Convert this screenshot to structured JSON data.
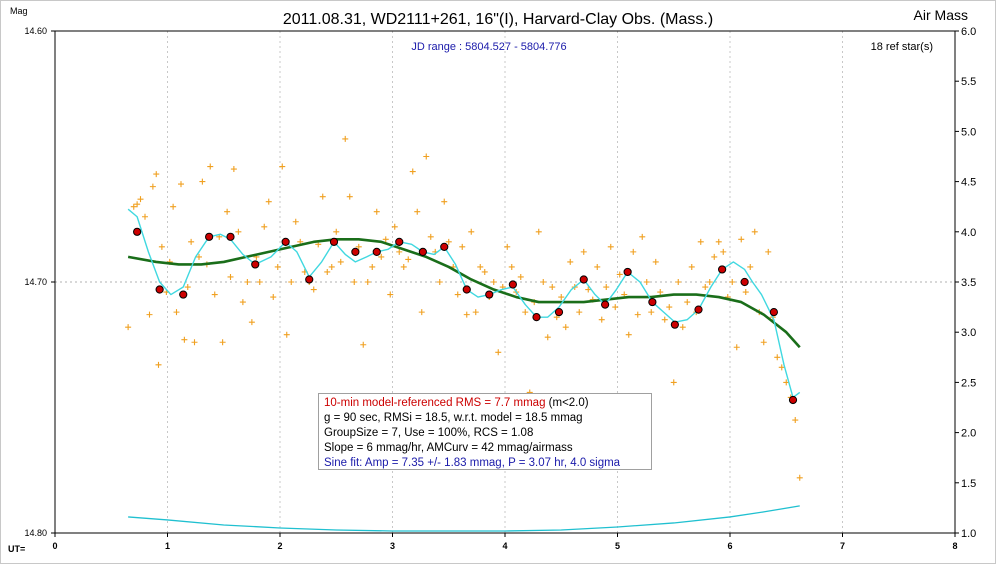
{
  "chart_data": {
    "type": "scatter",
    "title": "2011.08.31, WD2111+261, 16\"(I), Harvard-Clay Obs. (Mass.)",
    "jd_range": "JD range : 5804.527 - 5804.776",
    "ref_stars": "18 ref star(s)",
    "ylabel_left": "Mag",
    "ylabel_right": "Air Mass",
    "xlabel": "UT=",
    "x_range": [
      0,
      8
    ],
    "y_range_left": [
      14.8,
      14.6
    ],
    "y_range_right": [
      1.0,
      6.0
    ],
    "x_ticks": [
      "0",
      "1",
      "2",
      "3",
      "4",
      "5",
      "6",
      "7",
      "8"
    ],
    "y_ticks_left": [
      "14.60",
      "14.70",
      "14.80"
    ],
    "y_ticks_right": [
      "6.0",
      "5.5",
      "5.0",
      "4.5",
      "4.0",
      "3.5",
      "3.0",
      "2.5",
      "2.0",
      "1.5",
      "1.0"
    ],
    "grid": true,
    "reference_line_mag": 14.7,
    "raw_points": {
      "color": "#f0a020",
      "points": [
        [
          0.65,
          14.718
        ],
        [
          0.7,
          14.67
        ],
        [
          0.73,
          14.669
        ],
        [
          0.76,
          14.667
        ],
        [
          0.8,
          14.674
        ],
        [
          0.84,
          14.713
        ],
        [
          0.87,
          14.662
        ],
        [
          0.9,
          14.657
        ],
        [
          0.92,
          14.733
        ],
        [
          0.95,
          14.686
        ],
        [
          0.99,
          14.704
        ],
        [
          1.02,
          14.692
        ],
        [
          1.05,
          14.67
        ],
        [
          1.08,
          14.712
        ],
        [
          1.12,
          14.661
        ],
        [
          1.15,
          14.723
        ],
        [
          1.18,
          14.702
        ],
        [
          1.21,
          14.684
        ],
        [
          1.24,
          14.724
        ],
        [
          1.28,
          14.69
        ],
        [
          1.31,
          14.66
        ],
        [
          1.35,
          14.693
        ],
        [
          1.38,
          14.654
        ],
        [
          1.42,
          14.705
        ],
        [
          1.46,
          14.682
        ],
        [
          1.49,
          14.724
        ],
        [
          1.53,
          14.672
        ],
        [
          1.56,
          14.698
        ],
        [
          1.59,
          14.655
        ],
        [
          1.63,
          14.68
        ],
        [
          1.67,
          14.708
        ],
        [
          1.71,
          14.7
        ],
        [
          1.75,
          14.716
        ],
        [
          1.79,
          14.69
        ],
        [
          1.82,
          14.7
        ],
        [
          1.86,
          14.678
        ],
        [
          1.9,
          14.668
        ],
        [
          1.94,
          14.706
        ],
        [
          1.98,
          14.694
        ],
        [
          2.02,
          14.654
        ],
        [
          2.06,
          14.721
        ],
        [
          2.1,
          14.7
        ],
        [
          2.14,
          14.676
        ],
        [
          2.18,
          14.684
        ],
        [
          2.22,
          14.696
        ],
        [
          2.26,
          14.7
        ],
        [
          2.3,
          14.703
        ],
        [
          2.34,
          14.685
        ],
        [
          2.38,
          14.666
        ],
        [
          2.42,
          14.696
        ],
        [
          2.46,
          14.694
        ],
        [
          2.5,
          14.68
        ],
        [
          2.54,
          14.692
        ],
        [
          2.58,
          14.643
        ],
        [
          2.62,
          14.666
        ],
        [
          2.66,
          14.7
        ],
        [
          2.7,
          14.686
        ],
        [
          2.74,
          14.725
        ],
        [
          2.78,
          14.7
        ],
        [
          2.82,
          14.694
        ],
        [
          2.86,
          14.672
        ],
        [
          2.9,
          14.69
        ],
        [
          2.94,
          14.683
        ],
        [
          2.98,
          14.705
        ],
        [
          3.02,
          14.678
        ],
        [
          3.06,
          14.688
        ],
        [
          3.1,
          14.694
        ],
        [
          3.14,
          14.691
        ],
        [
          3.18,
          14.656
        ],
        [
          3.22,
          14.672
        ],
        [
          3.26,
          14.712
        ],
        [
          3.3,
          14.65
        ],
        [
          3.34,
          14.682
        ],
        [
          3.38,
          14.688
        ],
        [
          3.42,
          14.7
        ],
        [
          3.46,
          14.668
        ],
        [
          3.5,
          14.684
        ],
        [
          3.54,
          14.694
        ],
        [
          3.58,
          14.705
        ],
        [
          3.62,
          14.686
        ],
        [
          3.66,
          14.713
        ],
        [
          3.7,
          14.68
        ],
        [
          3.74,
          14.712
        ],
        [
          3.78,
          14.694
        ],
        [
          3.82,
          14.696
        ],
        [
          3.86,
          14.706
        ],
        [
          3.9,
          14.7
        ],
        [
          3.94,
          14.728
        ],
        [
          3.98,
          14.702
        ],
        [
          4.02,
          14.686
        ],
        [
          4.06,
          14.694
        ],
        [
          4.1,
          14.704
        ],
        [
          4.14,
          14.698
        ],
        [
          4.18,
          14.712
        ],
        [
          4.22,
          14.744
        ],
        [
          4.26,
          14.708
        ],
        [
          4.3,
          14.68
        ],
        [
          4.34,
          14.7
        ],
        [
          4.38,
          14.722
        ],
        [
          4.42,
          14.702
        ],
        [
          4.46,
          14.714
        ],
        [
          4.5,
          14.706
        ],
        [
          4.54,
          14.718
        ],
        [
          4.58,
          14.692
        ],
        [
          4.62,
          14.702
        ],
        [
          4.66,
          14.712
        ],
        [
          4.7,
          14.688
        ],
        [
          4.74,
          14.703
        ],
        [
          4.78,
          14.707
        ],
        [
          4.82,
          14.694
        ],
        [
          4.86,
          14.715
        ],
        [
          4.9,
          14.702
        ],
        [
          4.94,
          14.686
        ],
        [
          4.98,
          14.71
        ],
        [
          5.02,
          14.697
        ],
        [
          5.06,
          14.705
        ],
        [
          5.1,
          14.721
        ],
        [
          5.14,
          14.688
        ],
        [
          5.18,
          14.713
        ],
        [
          5.22,
          14.682
        ],
        [
          5.26,
          14.7
        ],
        [
          5.3,
          14.712
        ],
        [
          5.34,
          14.692
        ],
        [
          5.38,
          14.704
        ],
        [
          5.42,
          14.715
        ],
        [
          5.46,
          14.71
        ],
        [
          5.5,
          14.74
        ],
        [
          5.54,
          14.7
        ],
        [
          5.58,
          14.718
        ],
        [
          5.62,
          14.708
        ],
        [
          5.66,
          14.694
        ],
        [
          5.7,
          14.712
        ],
        [
          5.74,
          14.684
        ],
        [
          5.78,
          14.702
        ],
        [
          5.82,
          14.7
        ],
        [
          5.86,
          14.69
        ],
        [
          5.9,
          14.684
        ],
        [
          5.94,
          14.688
        ],
        [
          5.98,
          14.706
        ],
        [
          6.02,
          14.7
        ],
        [
          6.06,
          14.726
        ],
        [
          6.1,
          14.683
        ],
        [
          6.14,
          14.704
        ],
        [
          6.18,
          14.694
        ],
        [
          6.22,
          14.68
        ],
        [
          6.26,
          14.712
        ],
        [
          6.3,
          14.724
        ],
        [
          6.34,
          14.688
        ],
        [
          6.38,
          14.714
        ],
        [
          6.42,
          14.73
        ],
        [
          6.46,
          14.734
        ],
        [
          6.5,
          14.74
        ],
        [
          6.54,
          14.746
        ],
        [
          6.58,
          14.755
        ],
        [
          6.62,
          14.778
        ]
      ]
    },
    "binned_points": {
      "color": "#cc0000",
      "points": [
        [
          0.73,
          14.68
        ],
        [
          0.93,
          14.703
        ],
        [
          1.14,
          14.705
        ],
        [
          1.37,
          14.682
        ],
        [
          1.56,
          14.682
        ],
        [
          1.78,
          14.693
        ],
        [
          2.05,
          14.684
        ],
        [
          2.26,
          14.699
        ],
        [
          2.48,
          14.684
        ],
        [
          2.67,
          14.688
        ],
        [
          2.86,
          14.688
        ],
        [
          3.06,
          14.684
        ],
        [
          3.27,
          14.688
        ],
        [
          3.46,
          14.686
        ],
        [
          3.66,
          14.703
        ],
        [
          3.86,
          14.705
        ],
        [
          4.07,
          14.701
        ],
        [
          4.28,
          14.714
        ],
        [
          4.48,
          14.712
        ],
        [
          4.7,
          14.699
        ],
        [
          4.89,
          14.709
        ],
        [
          5.09,
          14.696
        ],
        [
          5.31,
          14.708
        ],
        [
          5.51,
          14.717
        ],
        [
          5.72,
          14.711
        ],
        [
          5.93,
          14.695
        ],
        [
          6.13,
          14.7
        ],
        [
          6.39,
          14.712
        ],
        [
          6.56,
          14.747
        ]
      ]
    },
    "model_fit": {
      "color": "#1a6e1a",
      "x": [
        0.65,
        0.9,
        1.1,
        1.3,
        1.5,
        1.7,
        1.9,
        2.1,
        2.3,
        2.5,
        2.7,
        2.9,
        3.1,
        3.3,
        3.5,
        3.7,
        3.9,
        4.1,
        4.3,
        4.5,
        4.7,
        4.9,
        5.1,
        5.3,
        5.5,
        5.7,
        5.9,
        6.1,
        6.3,
        6.5,
        6.62
      ],
      "y": [
        14.69,
        14.692,
        14.693,
        14.693,
        14.692,
        14.69,
        14.688,
        14.686,
        14.684,
        14.683,
        14.683,
        14.684,
        14.687,
        14.69,
        14.694,
        14.699,
        14.703,
        14.706,
        14.708,
        14.708,
        14.708,
        14.707,
        14.706,
        14.706,
        14.705,
        14.705,
        14.706,
        14.708,
        14.713,
        14.72,
        14.726
      ]
    },
    "smooth_curve": {
      "color": "#40d8e0",
      "x": [
        0.65,
        0.73,
        0.83,
        0.93,
        1.03,
        1.14,
        1.25,
        1.37,
        1.47,
        1.56,
        1.67,
        1.78,
        1.92,
        2.05,
        2.15,
        2.26,
        2.37,
        2.48,
        2.58,
        2.67,
        2.77,
        2.86,
        2.96,
        3.06,
        3.17,
        3.27,
        3.37,
        3.46,
        3.56,
        3.66,
        3.76,
        3.86,
        3.97,
        4.07,
        4.18,
        4.28,
        4.38,
        4.48,
        4.59,
        4.7,
        4.8,
        4.89,
        4.99,
        5.09,
        5.2,
        5.31,
        5.41,
        5.51,
        5.62,
        5.72,
        5.83,
        5.93,
        6.03,
        6.13,
        6.2,
        6.28,
        6.39,
        6.48,
        6.56,
        6.62
      ],
      "y": [
        14.671,
        14.674,
        14.688,
        14.7,
        14.705,
        14.702,
        14.69,
        14.682,
        14.681,
        14.683,
        14.689,
        14.693,
        14.69,
        14.684,
        14.688,
        14.698,
        14.692,
        14.684,
        14.689,
        14.692,
        14.69,
        14.688,
        14.687,
        14.684,
        14.685,
        14.688,
        14.689,
        14.686,
        14.693,
        14.703,
        14.706,
        14.705,
        14.703,
        14.702,
        14.709,
        14.714,
        14.714,
        14.71,
        14.703,
        14.699,
        14.705,
        14.709,
        14.703,
        14.696,
        14.7,
        14.708,
        14.712,
        14.716,
        14.715,
        14.711,
        14.702,
        14.695,
        14.692,
        14.695,
        14.7,
        14.705,
        14.715,
        14.733,
        14.746,
        14.744
      ]
    },
    "airmass_curve": {
      "color": "#20c0d0",
      "x": [
        0.65,
        1.0,
        1.5,
        2.0,
        2.5,
        3.0,
        3.5,
        4.0,
        4.5,
        5.0,
        5.5,
        6.0,
        6.3,
        6.62
      ],
      "y": [
        1.16,
        1.13,
        1.08,
        1.05,
        1.03,
        1.02,
        1.02,
        1.02,
        1.03,
        1.06,
        1.1,
        1.16,
        1.21,
        1.27
      ]
    }
  },
  "info": {
    "rms_prefix": "10-min model-referenced RMS = 7.7 mmag",
    "rms_suffix": " (m<2.0)",
    "line2": "g = 90 sec, RMSi = 18.5, w.r.t. model = 18.5 mmag",
    "line3": "GroupSize = 7, Use = 100%, RCS = 1.08",
    "line4": "Slope = 6 mmag/hr, AMCurv = 42 mmag/airmass",
    "line5": "Sine fit: Amp = 7.35 +/- 1.83 mmag, P = 3.07 hr, 4.0 sigma"
  }
}
